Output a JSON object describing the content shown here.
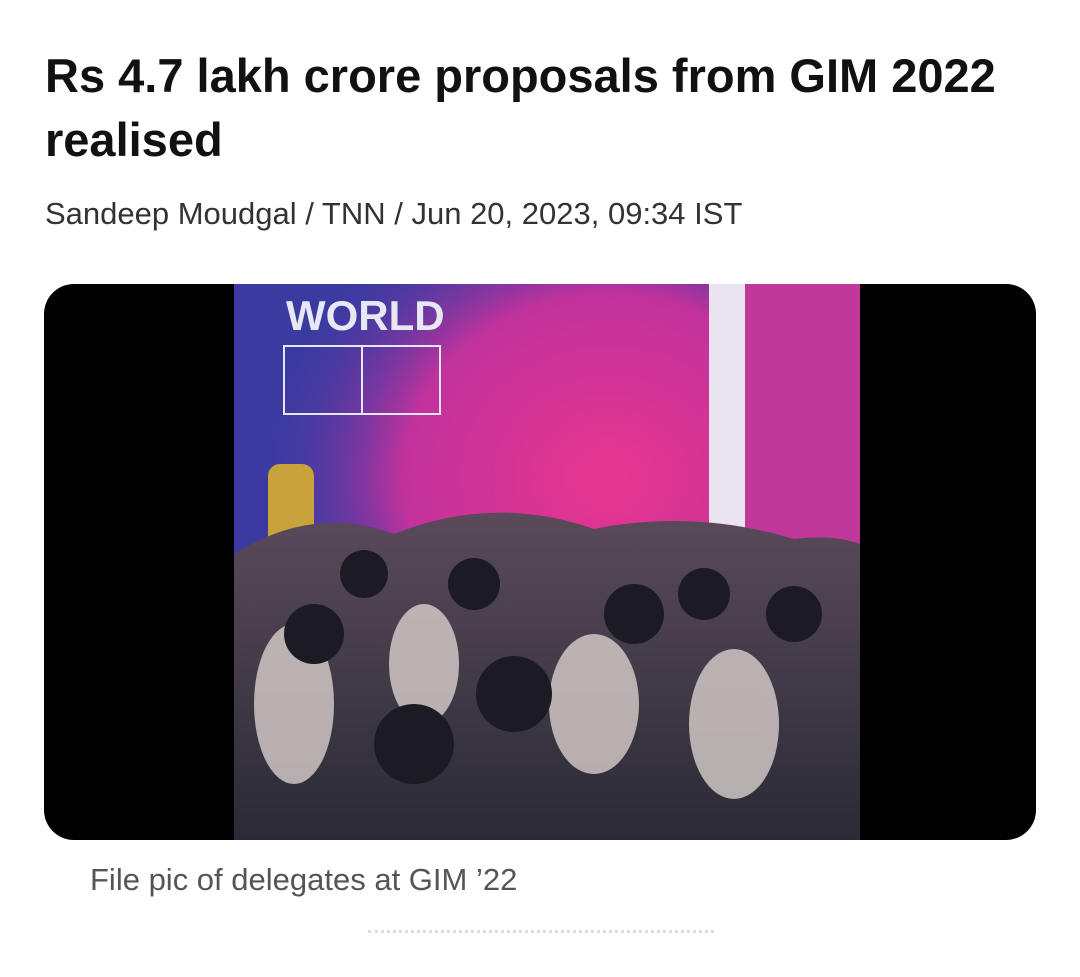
{
  "article": {
    "title": "Rs 4.7 lakh crore proposals from GIM 2022 realised",
    "byline": "Sandeep Moudgal / TNN / Jun 20, 2023, 09:34 IST",
    "image_text": "WORLD",
    "caption": "File pic of delegates at GIM ’22"
  }
}
